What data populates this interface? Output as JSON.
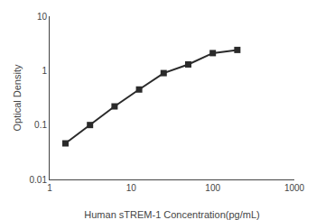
{
  "chart_data": {
    "type": "line",
    "x": [
      1.5625,
      3.125,
      6.25,
      12.5,
      25,
      50,
      100,
      200
    ],
    "values": [
      0.046,
      0.1,
      0.22,
      0.45,
      0.9,
      1.3,
      2.1,
      2.4
    ],
    "xlabel": "Human sTREM-1 Concentration(pg/mL)",
    "ylabel": "Optical Density",
    "xlim": [
      1,
      1000
    ],
    "ylim": [
      0.01,
      10
    ],
    "xticks": [
      1,
      10,
      100,
      1000
    ],
    "yticks": [
      0.01,
      0.1,
      1,
      10
    ],
    "log": true,
    "grid": false,
    "color": "#2a2a2a",
    "marker": "square"
  }
}
